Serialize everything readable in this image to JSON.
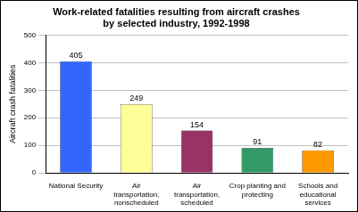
{
  "chart_data": {
    "type": "bar",
    "title": [
      "Work-related fatalities resulting from aircraft crashes",
      "by selected industry, 1992-1998"
    ],
    "y_label": "Aircraft crash fatalities",
    "categories": [
      "National Security",
      "Air transportation, nonscheduled",
      "Air transportation, scheduled",
      "Crop planting and protecting",
      "Schools and educational services"
    ],
    "values": [
      405,
      249,
      154,
      91,
      82
    ],
    "colors": [
      "#3366ff",
      "#ffff99",
      "#993366",
      "#339966",
      "#ff9900"
    ],
    "ylim": [
      0,
      500
    ],
    "yticks": [
      0,
      100,
      200,
      300,
      400,
      500
    ],
    "grid": true,
    "data_labels": true
  }
}
